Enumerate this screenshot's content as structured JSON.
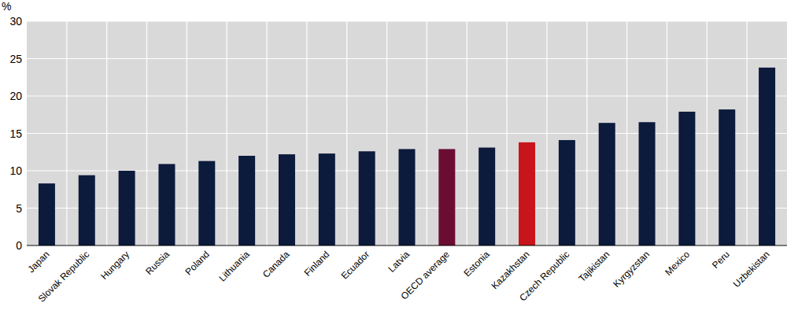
{
  "chart_data": {
    "type": "bar",
    "ylabel": "%",
    "categories": [
      "Japan",
      "Slovak Republic",
      "Hungary",
      "Russia",
      "Poland",
      "Lithuania",
      "Canada",
      "Finland",
      "Ecuador",
      "Latvia",
      "OECD average",
      "Estonia",
      "Kazakhstan",
      "Czech Republic",
      "Tajikistan",
      "Kyrgyzstan",
      "Mexico",
      "Peru",
      "Uzbekistan"
    ],
    "values": [
      8.3,
      9.4,
      10.0,
      10.9,
      11.3,
      12.0,
      12.2,
      12.3,
      12.6,
      12.9,
      12.9,
      13.1,
      13.8,
      14.1,
      16.4,
      16.5,
      17.9,
      18.2,
      23.8
    ],
    "colors": [
      "#0c1a3c",
      "#0c1a3c",
      "#0c1a3c",
      "#0c1a3c",
      "#0c1a3c",
      "#0c1a3c",
      "#0c1a3c",
      "#0c1a3c",
      "#0c1a3c",
      "#0c1a3c",
      "#6b0d33",
      "#0c1a3c",
      "#c8151b",
      "#0c1a3c",
      "#0c1a3c",
      "#0c1a3c",
      "#0c1a3c",
      "#0c1a3c",
      "#0c1a3c"
    ],
    "ylim": [
      0,
      30
    ],
    "yticks": [
      0,
      5,
      10,
      15,
      20,
      25,
      30
    ],
    "grid": true
  }
}
